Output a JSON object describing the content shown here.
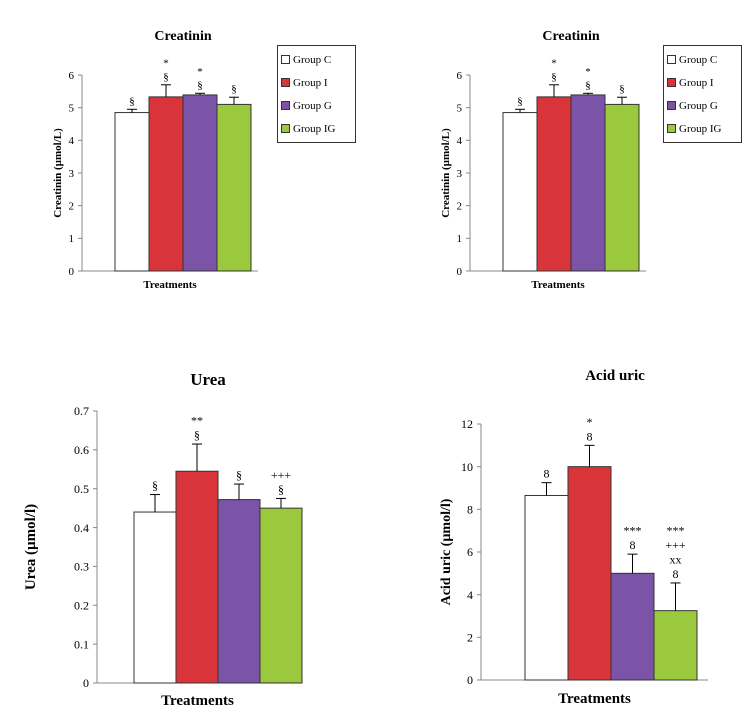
{
  "chart_data": [
    {
      "type": "bar",
      "title": "Creatinin",
      "xlabel": "Treatments",
      "ylabel": "Creatinin (µmol/L)",
      "ylim": [
        0,
        6
      ],
      "yticks": [
        "0",
        "1",
        "2",
        "3",
        "4",
        "5",
        "6"
      ],
      "series": [
        {
          "name": "Group C",
          "values": [
            4.85
          ],
          "error": [
            0.1
          ],
          "annotation": [
            "§"
          ],
          "color": "#ffffff"
        },
        {
          "name": "Group I",
          "values": [
            5.33
          ],
          "error": [
            0.37
          ],
          "annotation": [
            "*",
            "§"
          ],
          "color": "#d9343a"
        },
        {
          "name": "Group G",
          "values": [
            5.39
          ],
          "error": [
            0.05
          ],
          "annotation": [
            "*",
            "§"
          ],
          "color": "#7b54a8"
        },
        {
          "name": "Group IG",
          "values": [
            5.1
          ],
          "error": [
            0.22
          ],
          "annotation": [
            "§"
          ],
          "color": "#9bc93e"
        }
      ],
      "legend": "right"
    },
    {
      "type": "bar",
      "title": "Creatinin",
      "xlabel": "Treatments",
      "ylabel": "Creatinin (µmol/L)",
      "ylim": [
        0,
        6
      ],
      "yticks": [
        "0",
        "1",
        "2",
        "3",
        "4",
        "5",
        "6"
      ],
      "series": [
        {
          "name": "Group C",
          "values": [
            4.85
          ],
          "error": [
            0.1
          ],
          "annotation": [
            "§"
          ],
          "color": "#ffffff"
        },
        {
          "name": "Group I",
          "values": [
            5.33
          ],
          "error": [
            0.37
          ],
          "annotation": [
            "*",
            "§"
          ],
          "color": "#d9343a"
        },
        {
          "name": "Group G",
          "values": [
            5.39
          ],
          "error": [
            0.05
          ],
          "annotation": [
            "*",
            "§"
          ],
          "color": "#7b54a8"
        },
        {
          "name": "Group IG",
          "values": [
            5.1
          ],
          "error": [
            0.22
          ],
          "annotation": [
            "§"
          ],
          "color": "#9bc93e"
        }
      ],
      "legend": "right"
    },
    {
      "type": "bar",
      "title": "Urea",
      "xlabel": "Treatments",
      "ylabel": "Urea (µmol/l)",
      "ylim": [
        0,
        0.7
      ],
      "yticks": [
        "0",
        "0.1",
        "0.2",
        "0.3",
        "0.4",
        "0.5",
        "0.6",
        "0.7"
      ],
      "series": [
        {
          "name": "",
          "values": [
            0.44
          ],
          "error": [
            0.045
          ],
          "annotation": [
            "§"
          ],
          "color": "#ffffff"
        },
        {
          "name": "",
          "values": [
            0.545
          ],
          "error": [
            0.07
          ],
          "annotation": [
            "**",
            "§"
          ],
          "color": "#d9343a"
        },
        {
          "name": "",
          "values": [
            0.472
          ],
          "error": [
            0.04
          ],
          "annotation": [
            "§"
          ],
          "color": "#7b54a8"
        },
        {
          "name": "",
          "values": [
            0.45
          ],
          "error": [
            0.025
          ],
          "annotation": [
            "+++",
            "§"
          ],
          "color": "#9bc93e"
        }
      ]
    },
    {
      "type": "bar",
      "title": "Acid  uric",
      "xlabel": "Treatments",
      "ylabel": "Acid uric  (µmol/l)",
      "ylim": [
        0,
        12
      ],
      "yticks": [
        "0",
        "2",
        "4",
        "6",
        "8",
        "10",
        "12"
      ],
      "series": [
        {
          "name": "",
          "values": [
            8.65
          ],
          "error": [
            0.6
          ],
          "annotation": [
            "8"
          ],
          "color": "#ffffff"
        },
        {
          "name": "",
          "values": [
            10.0
          ],
          "error": [
            1.0
          ],
          "annotation": [
            "*",
            "8"
          ],
          "color": "#d9343a"
        },
        {
          "name": "",
          "values": [
            5.0
          ],
          "error": [
            0.9
          ],
          "annotation": [
            "***",
            "8"
          ],
          "color": "#7b54a8"
        },
        {
          "name": "",
          "values": [
            3.25
          ],
          "error": [
            1.3
          ],
          "annotation": [
            "***",
            "+++",
            "xx",
            "8"
          ],
          "color": "#9bc93e"
        }
      ]
    }
  ]
}
